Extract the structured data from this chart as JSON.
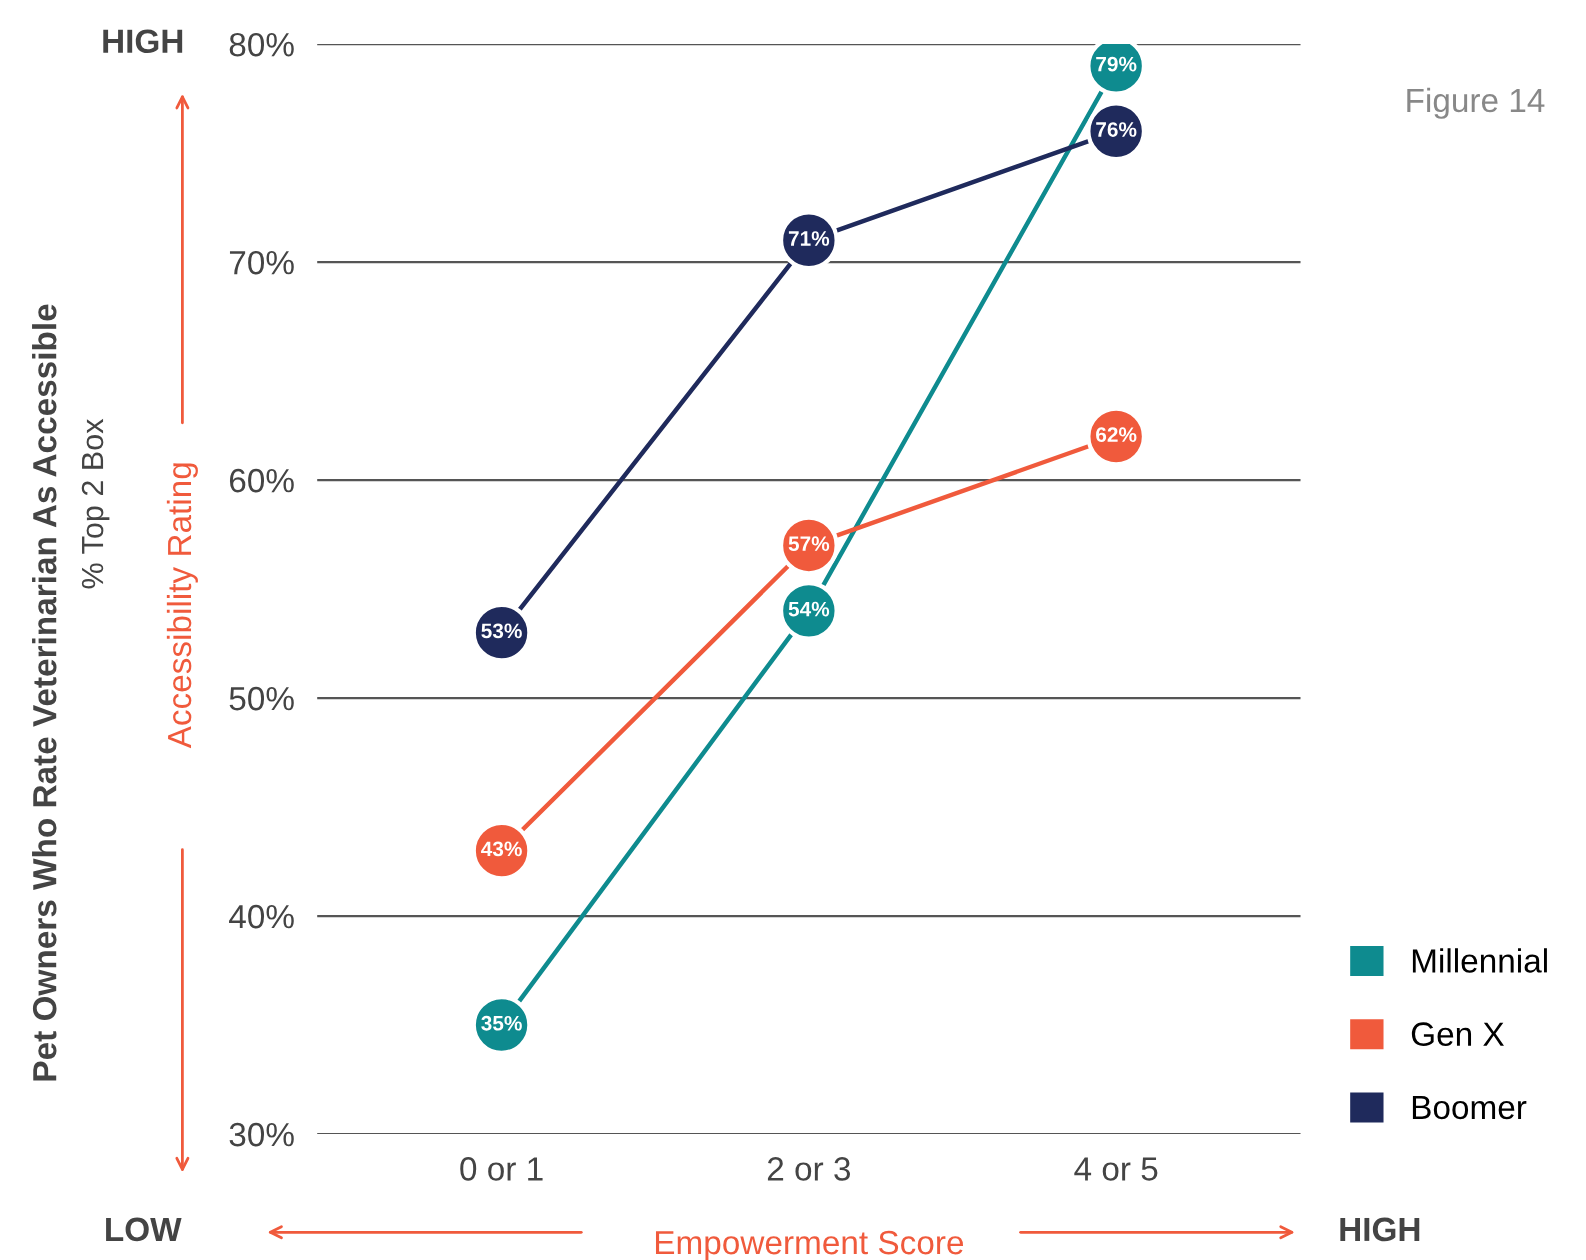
{
  "chart_data": {
    "type": "line",
    "xlabel": "Empowerment Score",
    "annotations": [
      "Pet Owners Who Rate Veterinarian As Accessible",
      "% Top 2 Box",
      "Accessibility Rating",
      "HIGH",
      "LOW",
      "HIGH",
      "Figure 14"
    ],
    "categories": [
      "0 or 1",
      "2 or 3",
      "4 or 5"
    ],
    "series": [
      {
        "name": "Millennial",
        "color": "#0e8b8f",
        "values": [
          35,
          54,
          79
        ],
        "value_labels": [
          "35%",
          "54%",
          "79%"
        ]
      },
      {
        "name": "Gen X",
        "color": "#f05a3c",
        "values": [
          43,
          57,
          62
        ],
        "value_labels": [
          "43%",
          "57%",
          "62%"
        ]
      },
      {
        "name": "Boomer",
        "color": "#1f2a5c",
        "values": [
          53,
          71,
          76
        ],
        "value_labels": [
          "53%",
          "71%",
          "76%"
        ]
      }
    ],
    "ylim": [
      30,
      80
    ],
    "yticks": [
      {
        "value": 30,
        "label": "30%"
      },
      {
        "value": 40,
        "label": "40%"
      },
      {
        "value": 50,
        "label": "50%"
      },
      {
        "value": 60,
        "label": "60%"
      },
      {
        "value": 70,
        "label": "70%"
      },
      {
        "value": 80,
        "label": "80%"
      }
    ],
    "grid": "y",
    "legend": "bottom right",
    "marker": "circle",
    "line_style": "solid"
  }
}
